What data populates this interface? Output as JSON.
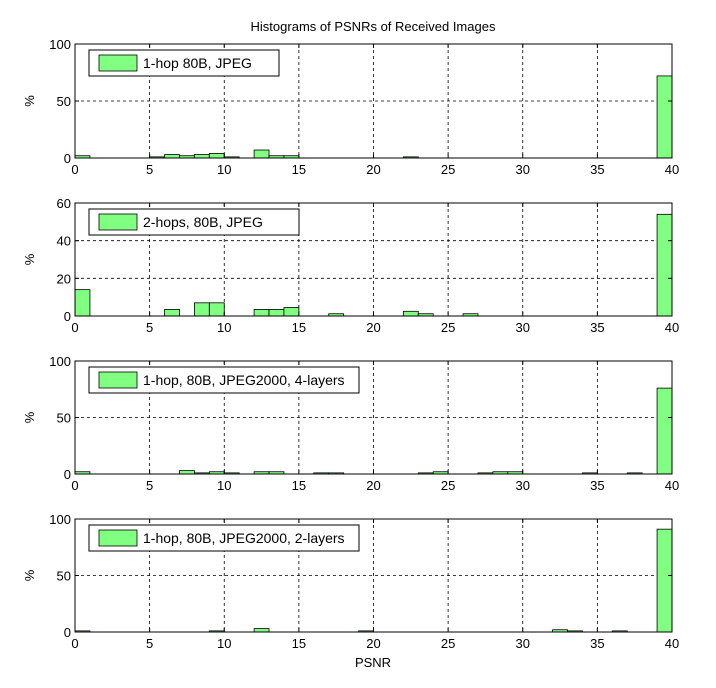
{
  "figure": {
    "title": "Histograms of PSNRs of Received Images",
    "xlabel": "PSNR"
  },
  "chart_data": [
    {
      "type": "bar",
      "legend": "1-hop 80B, JPEG",
      "ylabel": "%",
      "xlim": [
        0,
        40
      ],
      "ylim": [
        0,
        100
      ],
      "xticks": [
        0,
        5,
        10,
        15,
        20,
        25,
        30,
        35,
        40
      ],
      "yticks": [
        0,
        50,
        100
      ],
      "bin_width": 1,
      "grid": true,
      "legend_position": "top-left",
      "bars": [
        {
          "x": 0,
          "y": 2
        },
        {
          "x": 5,
          "y": 1
        },
        {
          "x": 6,
          "y": 3
        },
        {
          "x": 7,
          "y": 2
        },
        {
          "x": 8,
          "y": 3
        },
        {
          "x": 9,
          "y": 4
        },
        {
          "x": 10,
          "y": 1
        },
        {
          "x": 12,
          "y": 7
        },
        {
          "x": 13,
          "y": 2
        },
        {
          "x": 14,
          "y": 2
        },
        {
          "x": 22,
          "y": 1
        },
        {
          "x": 39,
          "y": 72
        }
      ]
    },
    {
      "type": "bar",
      "legend": "2-hops, 80B, JPEG",
      "ylabel": "%",
      "xlim": [
        0,
        40
      ],
      "ylim": [
        0,
        60
      ],
      "xticks": [
        0,
        5,
        10,
        15,
        20,
        25,
        30,
        35,
        40
      ],
      "yticks": [
        0,
        20,
        40,
        60
      ],
      "bin_width": 1,
      "grid": true,
      "legend_position": "top-left",
      "bars": [
        {
          "x": 0,
          "y": 14
        },
        {
          "x": 6,
          "y": 3.5
        },
        {
          "x": 8,
          "y": 7
        },
        {
          "x": 9,
          "y": 7
        },
        {
          "x": 12,
          "y": 3.5
        },
        {
          "x": 13,
          "y": 3.5
        },
        {
          "x": 14,
          "y": 4.5
        },
        {
          "x": 17,
          "y": 1.2
        },
        {
          "x": 22,
          "y": 2.5
        },
        {
          "x": 23,
          "y": 1.2
        },
        {
          "x": 26,
          "y": 1.2
        },
        {
          "x": 39,
          "y": 54
        }
      ]
    },
    {
      "type": "bar",
      "legend": "1-hop, 80B, JPEG2000, 4-layers",
      "ylabel": "%",
      "xlim": [
        0,
        40
      ],
      "ylim": [
        0,
        100
      ],
      "xticks": [
        0,
        5,
        10,
        15,
        20,
        25,
        30,
        35,
        40
      ],
      "yticks": [
        0,
        50,
        100
      ],
      "bin_width": 1,
      "grid": true,
      "legend_position": "top-left",
      "bars": [
        {
          "x": 0,
          "y": 2
        },
        {
          "x": 7,
          "y": 3
        },
        {
          "x": 8,
          "y": 1
        },
        {
          "x": 9,
          "y": 2
        },
        {
          "x": 10,
          "y": 1
        },
        {
          "x": 12,
          "y": 2
        },
        {
          "x": 13,
          "y": 2
        },
        {
          "x": 16,
          "y": 1
        },
        {
          "x": 17,
          "y": 1
        },
        {
          "x": 23,
          "y": 1
        },
        {
          "x": 24,
          "y": 2
        },
        {
          "x": 27,
          "y": 1
        },
        {
          "x": 28,
          "y": 2
        },
        {
          "x": 29,
          "y": 2
        },
        {
          "x": 34,
          "y": 1
        },
        {
          "x": 37,
          "y": 1
        },
        {
          "x": 39,
          "y": 76
        }
      ]
    },
    {
      "type": "bar",
      "legend": "1-hop, 80B, JPEG2000, 2-layers",
      "ylabel": "%",
      "xlim": [
        0,
        40
      ],
      "ylim": [
        0,
        100
      ],
      "xticks": [
        0,
        5,
        10,
        15,
        20,
        25,
        30,
        35,
        40
      ],
      "yticks": [
        0,
        50,
        100
      ],
      "bin_width": 1,
      "grid": true,
      "legend_position": "top-left",
      "bars": [
        {
          "x": 0,
          "y": 1
        },
        {
          "x": 9,
          "y": 1
        },
        {
          "x": 12,
          "y": 3
        },
        {
          "x": 19,
          "y": 1
        },
        {
          "x": 32,
          "y": 2
        },
        {
          "x": 33,
          "y": 1
        },
        {
          "x": 36,
          "y": 1
        },
        {
          "x": 39,
          "y": 91
        }
      ]
    }
  ]
}
